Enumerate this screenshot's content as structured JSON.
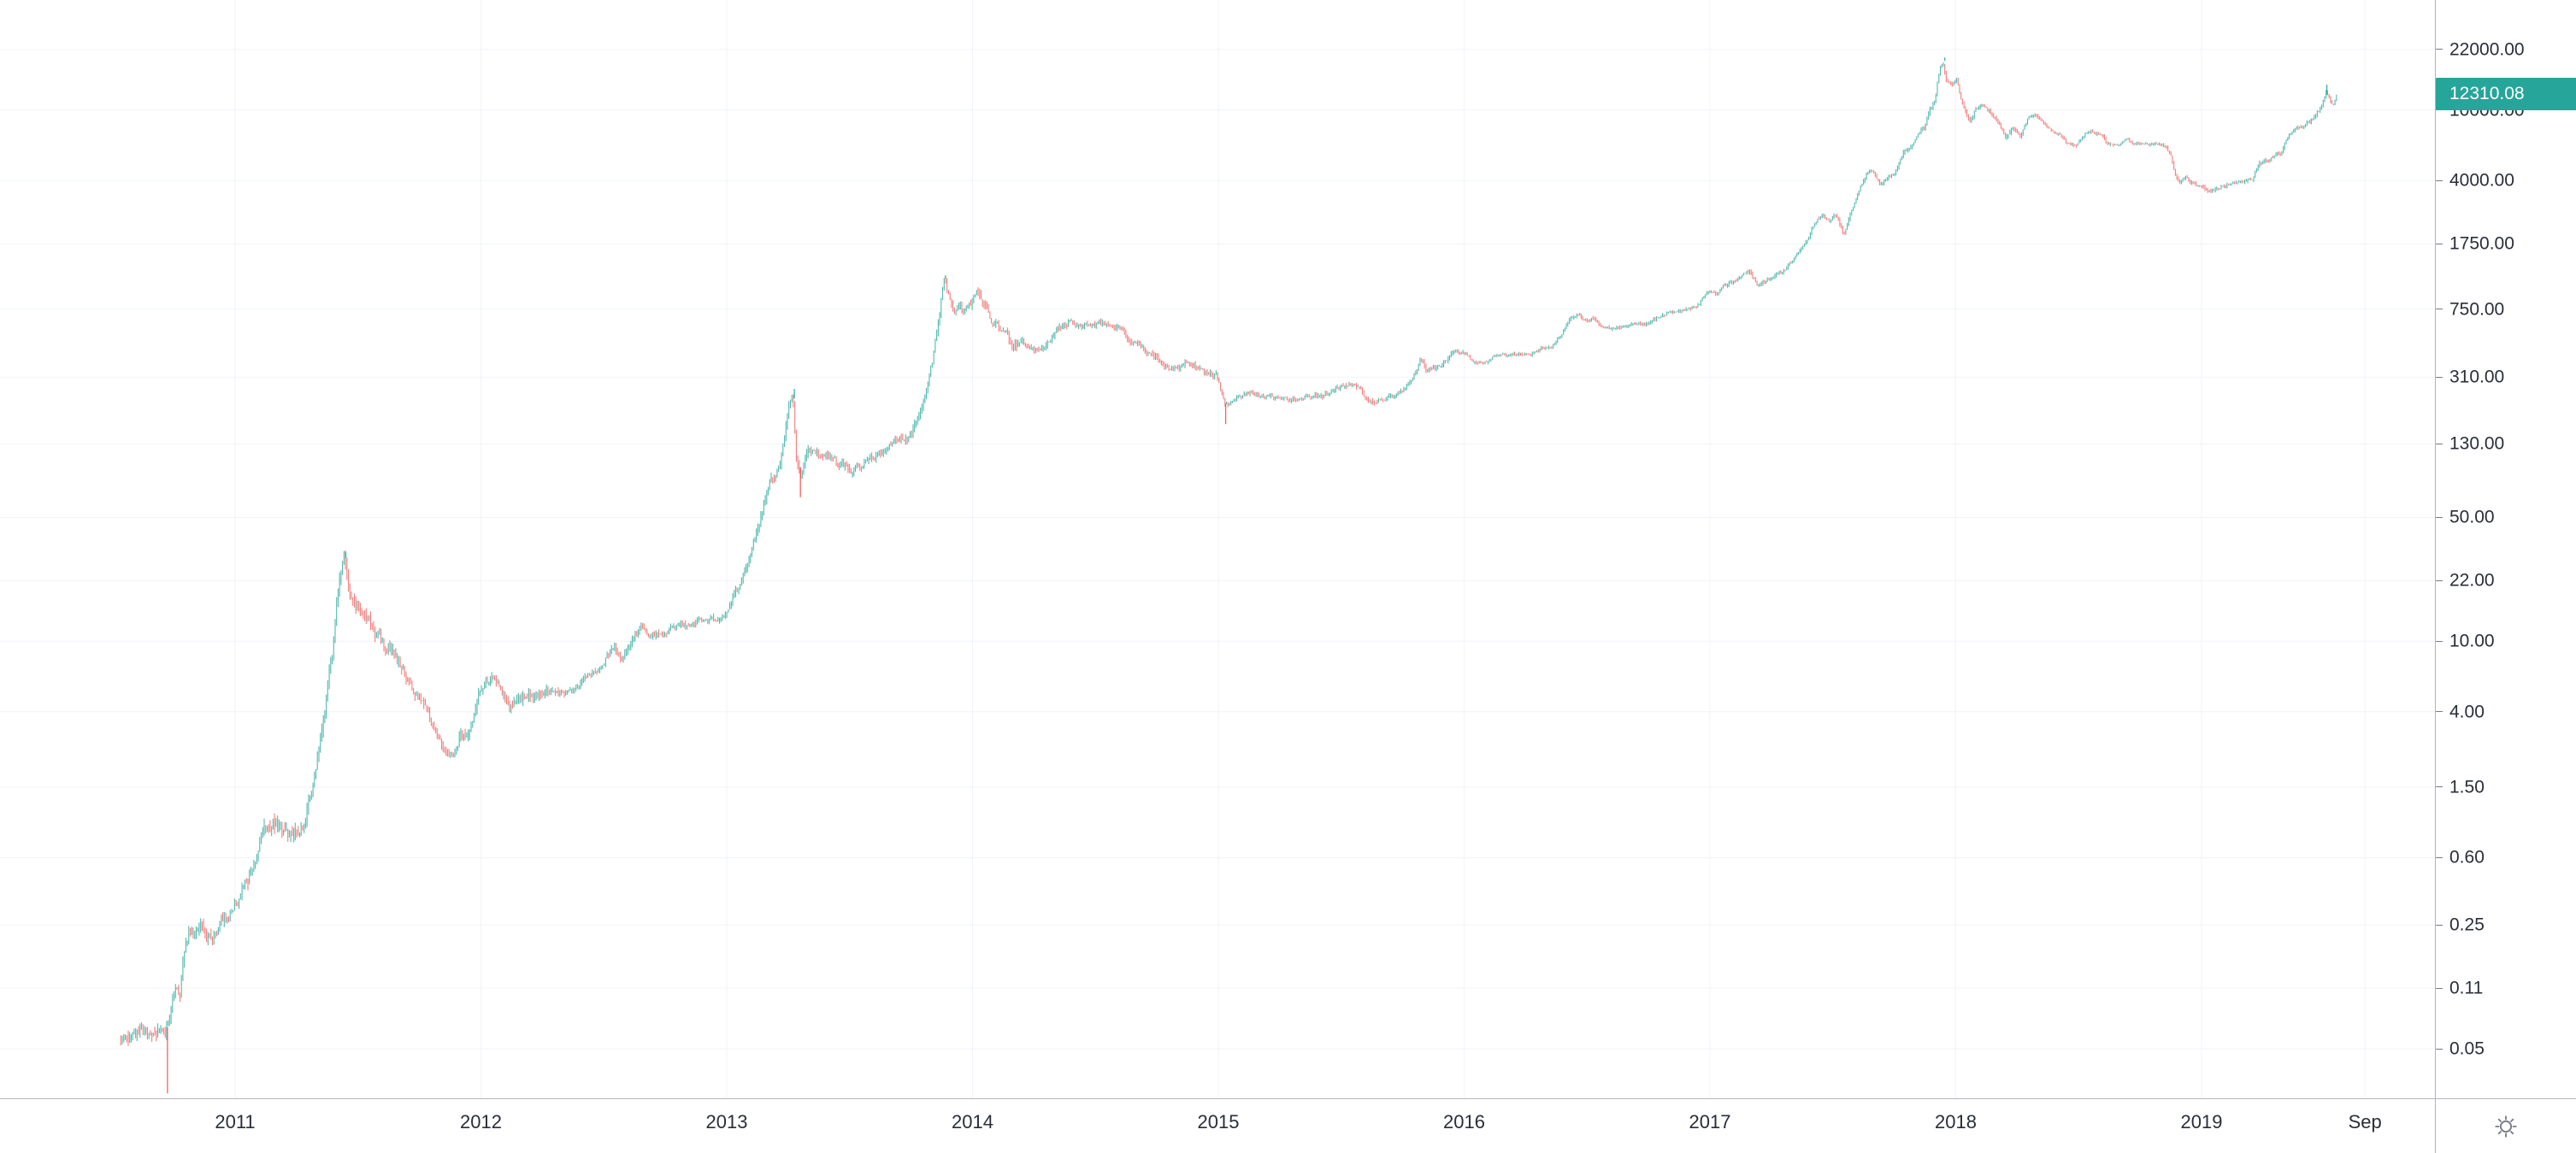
{
  "chart": {
    "last_price_label": "12310.08",
    "colors": {
      "up": "#26a69a",
      "down": "#ef5350",
      "badge_bg": "#26a69a",
      "badge_text": "#ffffff",
      "axis_line": "#b2b5be",
      "axis_text": "#2a2e39",
      "grid": "#f0f3f8",
      "icon": "#787b86"
    }
  },
  "chart_data": {
    "type": "line",
    "style": "candlestick_log_scale",
    "title": "",
    "xlabel": "",
    "ylabel": "",
    "legend": [],
    "grid": "faint",
    "last_price": 12310.08,
    "x_axis": {
      "unit": "year",
      "range": [
        2010.04,
        2019.95
      ],
      "ticks": [
        {
          "label": "2011",
          "t": 2011
        },
        {
          "label": "2012",
          "t": 2012
        },
        {
          "label": "2013",
          "t": 2013
        },
        {
          "label": "2014",
          "t": 2014
        },
        {
          "label": "2015",
          "t": 2015
        },
        {
          "label": "2016",
          "t": 2016
        },
        {
          "label": "2017",
          "t": 2017
        },
        {
          "label": "2018",
          "t": 2018
        },
        {
          "label": "2019",
          "t": 2019
        },
        {
          "label": "Sep",
          "t": 2019.665
        }
      ]
    },
    "y_axis": {
      "scale": "log",
      "range": [
        0.026,
        41800
      ],
      "ticks": [
        "22000.00",
        "10000.00",
        "4000.00",
        "1750.00",
        "750.00",
        "310.00",
        "130.00",
        "50.00",
        "22.00",
        "10.00",
        "4.00",
        "1.50",
        "0.60",
        "0.25",
        "0.11",
        "0.05"
      ],
      "tick_values": [
        22000,
        10000,
        4000,
        1750,
        750,
        310,
        130,
        50,
        22,
        10,
        4,
        1.5,
        0.6,
        0.25,
        0.11,
        0.05
      ]
    },
    "series": [
      {
        "name": "price",
        "anchors": [
          [
            2010.535,
            0.055
          ],
          [
            2010.56,
            0.062
          ],
          [
            2010.58,
            0.058
          ],
          [
            2010.6,
            0.06
          ],
          [
            2010.62,
            0.065
          ],
          [
            2010.65,
            0.06
          ],
          [
            2010.67,
            0.062
          ],
          [
            2010.7,
            0.065
          ],
          [
            2010.72,
            0.062
          ],
          [
            2010.74,
            0.08
          ],
          [
            2010.76,
            0.11
          ],
          [
            2010.78,
            0.095
          ],
          [
            2010.8,
            0.19
          ],
          [
            2010.82,
            0.24
          ],
          [
            2010.84,
            0.22
          ],
          [
            2010.87,
            0.24
          ],
          [
            2010.9,
            0.21
          ],
          [
            2010.93,
            0.24
          ],
          [
            2010.96,
            0.27
          ],
          [
            2011.0,
            0.3
          ],
          [
            2011.04,
            0.42
          ],
          [
            2011.08,
            0.52
          ],
          [
            2011.12,
            0.88
          ],
          [
            2011.16,
            0.95
          ],
          [
            2011.2,
            0.86
          ],
          [
            2011.24,
            0.8
          ],
          [
            2011.28,
            0.86
          ],
          [
            2011.32,
            1.55
          ],
          [
            2011.36,
            3.2
          ],
          [
            2011.4,
            8.2
          ],
          [
            2011.43,
            23
          ],
          [
            2011.45,
            29.5
          ],
          [
            2011.47,
            17.5
          ],
          [
            2011.49,
            15.5
          ],
          [
            2011.52,
            14.5
          ],
          [
            2011.55,
            13.2
          ],
          [
            2011.58,
            11.0
          ],
          [
            2011.62,
            9.2
          ],
          [
            2011.66,
            8.0
          ],
          [
            2011.7,
            6.5
          ],
          [
            2011.74,
            4.8
          ],
          [
            2011.78,
            4.6
          ],
          [
            2011.82,
            3.1
          ],
          [
            2011.86,
            2.4
          ],
          [
            2011.89,
            2.1
          ],
          [
            2011.92,
            2.9
          ],
          [
            2011.96,
            3.1
          ],
          [
            2012.0,
            5.2
          ],
          [
            2012.04,
            6.1
          ],
          [
            2012.08,
            5.6
          ],
          [
            2012.12,
            4.4
          ],
          [
            2012.16,
            4.7
          ],
          [
            2012.2,
            4.9
          ],
          [
            2012.25,
            4.9
          ],
          [
            2012.3,
            5.0
          ],
          [
            2012.35,
            5.1
          ],
          [
            2012.4,
            5.5
          ],
          [
            2012.44,
            6.5
          ],
          [
            2012.48,
            6.7
          ],
          [
            2012.52,
            8.5
          ],
          [
            2012.55,
            9.1
          ],
          [
            2012.58,
            7.6
          ],
          [
            2012.62,
            10.2
          ],
          [
            2012.66,
            12.2
          ],
          [
            2012.69,
            10.1
          ],
          [
            2012.72,
            11.0
          ],
          [
            2012.76,
            11.3
          ],
          [
            2012.8,
            11.9
          ],
          [
            2012.84,
            12.4
          ],
          [
            2012.88,
            12.6
          ],
          [
            2012.92,
            13.3
          ],
          [
            2012.96,
            13.3
          ],
          [
            2013.0,
            13.5
          ],
          [
            2013.03,
            18
          ],
          [
            2013.06,
            21
          ],
          [
            2013.1,
            31
          ],
          [
            2013.14,
            47
          ],
          [
            2013.18,
            78
          ],
          [
            2013.22,
            93
          ],
          [
            2013.26,
            210
          ],
          [
            2013.275,
            235
          ],
          [
            2013.29,
            105
          ],
          [
            2013.31,
            88
          ],
          [
            2013.33,
            122
          ],
          [
            2013.36,
            118
          ],
          [
            2013.4,
            112
          ],
          [
            2013.44,
            104
          ],
          [
            2013.48,
            98
          ],
          [
            2013.52,
            92
          ],
          [
            2013.56,
            102
          ],
          [
            2013.6,
            108
          ],
          [
            2013.64,
            118
          ],
          [
            2013.68,
            135
          ],
          [
            2013.72,
            135
          ],
          [
            2013.76,
            150
          ],
          [
            2013.8,
            205
          ],
          [
            2013.84,
            360
          ],
          [
            2013.87,
            700
          ],
          [
            2013.89,
            1120
          ],
          [
            2013.91,
            920
          ],
          [
            2013.93,
            710
          ],
          [
            2013.95,
            760
          ],
          [
            2013.97,
            735
          ],
          [
            2014.0,
            805
          ],
          [
            2014.02,
            900
          ],
          [
            2014.05,
            830
          ],
          [
            2014.08,
            640
          ],
          [
            2014.11,
            590
          ],
          [
            2014.14,
            560
          ],
          [
            2014.17,
            455
          ],
          [
            2014.2,
            500
          ],
          [
            2014.24,
            455
          ],
          [
            2014.28,
            445
          ],
          [
            2014.32,
            500
          ],
          [
            2014.36,
            590
          ],
          [
            2014.4,
            640
          ],
          [
            2014.44,
            600
          ],
          [
            2014.48,
            615
          ],
          [
            2014.52,
            630
          ],
          [
            2014.56,
            605
          ],
          [
            2014.6,
            590
          ],
          [
            2014.64,
            510
          ],
          [
            2014.68,
            480
          ],
          [
            2014.72,
            415
          ],
          [
            2014.76,
            390
          ],
          [
            2014.8,
            345
          ],
          [
            2014.84,
            355
          ],
          [
            2014.88,
            375
          ],
          [
            2014.92,
            355
          ],
          [
            2014.96,
            325
          ],
          [
            2015.0,
            315
          ],
          [
            2015.03,
            220
          ],
          [
            2015.06,
            225
          ],
          [
            2015.1,
            245
          ],
          [
            2015.14,
            255
          ],
          [
            2015.18,
            245
          ],
          [
            2015.22,
            240
          ],
          [
            2015.26,
            236
          ],
          [
            2015.3,
            232
          ],
          [
            2015.34,
            237
          ],
          [
            2015.38,
            240
          ],
          [
            2015.42,
            238
          ],
          [
            2015.46,
            252
          ],
          [
            2015.5,
            268
          ],
          [
            2015.54,
            282
          ],
          [
            2015.58,
            278
          ],
          [
            2015.61,
            232
          ],
          [
            2015.64,
            228
          ],
          [
            2015.68,
            236
          ],
          [
            2015.72,
            240
          ],
          [
            2015.76,
            264
          ],
          [
            2015.8,
            310
          ],
          [
            2015.83,
            395
          ],
          [
            2015.855,
            330
          ],
          [
            2015.88,
            350
          ],
          [
            2015.92,
            362
          ],
          [
            2015.96,
            425
          ],
          [
            2016.0,
            432
          ],
          [
            2016.04,
            385
          ],
          [
            2016.08,
            372
          ],
          [
            2016.12,
            398
          ],
          [
            2016.16,
            420
          ],
          [
            2016.2,
            416
          ],
          [
            2016.24,
            418
          ],
          [
            2016.28,
            425
          ],
          [
            2016.32,
            448
          ],
          [
            2016.36,
            455
          ],
          [
            2016.4,
            530
          ],
          [
            2016.44,
            665
          ],
          [
            2016.47,
            700
          ],
          [
            2016.5,
            650
          ],
          [
            2016.53,
            672
          ],
          [
            2016.56,
            600
          ],
          [
            2016.6,
            580
          ],
          [
            2016.64,
            590
          ],
          [
            2016.68,
            610
          ],
          [
            2016.72,
            620
          ],
          [
            2016.76,
            635
          ],
          [
            2016.8,
            685
          ],
          [
            2016.84,
            710
          ],
          [
            2016.88,
            730
          ],
          [
            2016.92,
            745
          ],
          [
            2016.96,
            790
          ],
          [
            2017.0,
            965
          ],
          [
            2017.03,
            895
          ],
          [
            2017.06,
            1010
          ],
          [
            2017.1,
            1060
          ],
          [
            2017.14,
            1180
          ],
          [
            2017.17,
            1230
          ],
          [
            2017.2,
            1000
          ],
          [
            2017.24,
            1080
          ],
          [
            2017.28,
            1180
          ],
          [
            2017.32,
            1290
          ],
          [
            2017.36,
            1520
          ],
          [
            2017.4,
            1850
          ],
          [
            2017.43,
            2250
          ],
          [
            2017.46,
            2550
          ],
          [
            2017.49,
            2400
          ],
          [
            2017.52,
            2550
          ],
          [
            2017.55,
            1990
          ],
          [
            2017.58,
            2650
          ],
          [
            2017.61,
            3400
          ],
          [
            2017.64,
            4350
          ],
          [
            2017.67,
            4550
          ],
          [
            2017.7,
            3800
          ],
          [
            2017.73,
            4100
          ],
          [
            2017.76,
            4400
          ],
          [
            2017.79,
            5600
          ],
          [
            2017.82,
            6150
          ],
          [
            2017.85,
            7300
          ],
          [
            2017.88,
            8050
          ],
          [
            2017.9,
            9800
          ],
          [
            2017.92,
            11100
          ],
          [
            2017.94,
            16700
          ],
          [
            2017.955,
            18900
          ],
          [
            2017.97,
            14200
          ],
          [
            2017.99,
            14100
          ],
          [
            2018.01,
            15100
          ],
          [
            2018.03,
            11300
          ],
          [
            2018.06,
            8600
          ],
          [
            2018.09,
            10200
          ],
          [
            2018.12,
            10800
          ],
          [
            2018.15,
            9400
          ],
          [
            2018.18,
            8300
          ],
          [
            2018.21,
            7000
          ],
          [
            2018.24,
            7900
          ],
          [
            2018.27,
            7100
          ],
          [
            2018.3,
            8900
          ],
          [
            2018.33,
            9300
          ],
          [
            2018.36,
            8400
          ],
          [
            2018.4,
            7500
          ],
          [
            2018.43,
            7400
          ],
          [
            2018.46,
            6450
          ],
          [
            2018.5,
            6300
          ],
          [
            2018.53,
            7350
          ],
          [
            2018.56,
            7600
          ],
          [
            2018.6,
            7050
          ],
          [
            2018.63,
            6300
          ],
          [
            2018.66,
            6450
          ],
          [
            2018.7,
            6700
          ],
          [
            2018.73,
            6500
          ],
          [
            2018.76,
            6550
          ],
          [
            2018.8,
            6450
          ],
          [
            2018.83,
            6400
          ],
          [
            2018.86,
            6350
          ],
          [
            2018.88,
            5600
          ],
          [
            2018.9,
            4300
          ],
          [
            2018.92,
            3800
          ],
          [
            2018.94,
            4250
          ],
          [
            2018.96,
            3900
          ],
          [
            2018.98,
            3800
          ],
          [
            2019.0,
            3720
          ],
          [
            2019.03,
            3460
          ],
          [
            2019.06,
            3560
          ],
          [
            2019.09,
            3660
          ],
          [
            2019.12,
            3840
          ],
          [
            2019.15,
            3920
          ],
          [
            2019.18,
            3960
          ],
          [
            2019.21,
            4050
          ],
          [
            2019.24,
            4900
          ],
          [
            2019.27,
            5150
          ],
          [
            2019.3,
            5400
          ],
          [
            2019.33,
            5750
          ],
          [
            2019.36,
            7100
          ],
          [
            2019.39,
            7950
          ],
          [
            2019.42,
            8100
          ],
          [
            2019.45,
            8700
          ],
          [
            2019.47,
            9300
          ],
          [
            2019.5,
            10900
          ],
          [
            2019.515,
            12900
          ],
          [
            2019.53,
            11200
          ],
          [
            2019.545,
            10800
          ],
          [
            2019.555,
            12310.08
          ]
        ],
        "spikes": [
          [
            2010.725,
            0.028
          ],
          [
            2011.45,
            31.9
          ],
          [
            2013.275,
            266
          ],
          [
            2013.3,
            65
          ],
          [
            2013.89,
            1165
          ],
          [
            2015.03,
            168
          ],
          [
            2017.955,
            19800
          ],
          [
            2019.51,
            13880
          ]
        ]
      }
    ]
  }
}
